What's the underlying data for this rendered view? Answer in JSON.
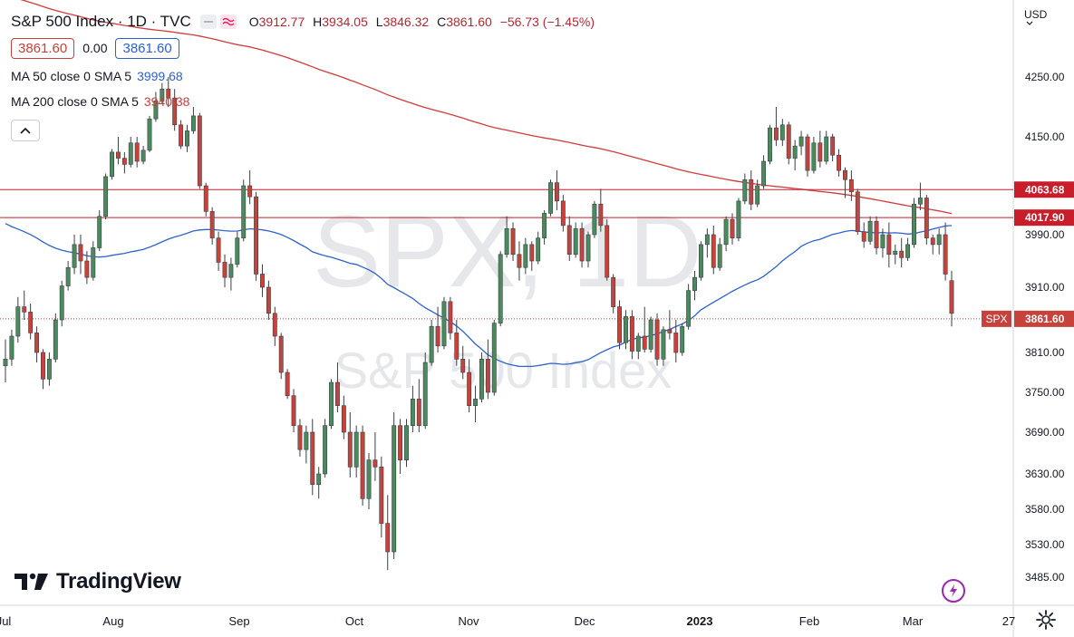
{
  "header": {
    "title": "S&P 500 Index · 1D · TVC",
    "ohlc": {
      "o_label": "O",
      "o": "3912.77",
      "h_label": "H",
      "h": "3934.05",
      "l_label": "L",
      "l": "3846.32",
      "c_label": "C",
      "c": "3861.60",
      "change": "−56.73 (−1.45%)"
    },
    "bid": "3861.60",
    "spread": "0.00",
    "ask": "3861.60",
    "ma50_label": "MA 50 close 0 SMA 5",
    "ma50_value": "3999.68",
    "ma200_label": "MA 200 close 0 SMA 5",
    "ma200_value": "3940.38"
  },
  "currency_label": "USD",
  "logo_text": "TradingView",
  "watermark": {
    "symbol": "SPX, 1D",
    "name": "S&P 500 Index"
  },
  "colors": {
    "up": "#4a8a5c",
    "down": "#c6423b",
    "ma50": "#2f62c8",
    "ma200": "#cf3c3c",
    "hline": "#c81e2c",
    "price_tag": "#c6423b"
  },
  "icons": [
    "chevron-up-icon",
    "lightning-icon",
    "gear-icon",
    "tradingview-logo-icon"
  ],
  "chart_data": {
    "type": "candlestick",
    "y_axis_ticks": [
      4250,
      4150,
      3990,
      3910,
      3810,
      3750,
      3690,
      3630,
      3580,
      3530,
      3485
    ],
    "y_tick_labels": [
      "4250.00",
      "4150.00",
      "3990.00",
      "3910.00",
      "3810.00",
      "3750.00",
      "3690.00",
      "3630.00",
      "3580.00",
      "3530.00",
      "3485.00"
    ],
    "x_tick_labels": [
      "Jul",
      "Aug",
      "Sep",
      "Oct",
      "Nov",
      "Dec",
      "2023",
      "Feb",
      "Mar",
      "27"
    ],
    "horizontal_levels": [
      {
        "label": "4063.68",
        "value": 4063.68
      },
      {
        "label": "4017.90",
        "value": 4017.9
      }
    ],
    "last_price": {
      "symbol": "SPX",
      "label": "3861.60",
      "value": 3861.6
    },
    "candles_ohlc": [
      [
        3790,
        3830,
        3765,
        3800
      ],
      [
        3800,
        3845,
        3790,
        3835
      ],
      [
        3835,
        3895,
        3825,
        3880
      ],
      [
        3880,
        3905,
        3860,
        3872
      ],
      [
        3872,
        3885,
        3830,
        3840
      ],
      [
        3840,
        3850,
        3795,
        3810
      ],
      [
        3810,
        3815,
        3755,
        3770
      ],
      [
        3770,
        3810,
        3760,
        3800
      ],
      [
        3800,
        3870,
        3795,
        3860
      ],
      [
        3860,
        3920,
        3850,
        3912
      ],
      [
        3912,
        3950,
        3905,
        3940
      ],
      [
        3940,
        3990,
        3930,
        3975
      ],
      [
        3975,
        3990,
        3930,
        3950
      ],
      [
        3950,
        3965,
        3915,
        3925
      ],
      [
        3925,
        3980,
        3920,
        3970
      ],
      [
        3970,
        4030,
        3965,
        4020
      ],
      [
        4020,
        4090,
        4015,
        4085
      ],
      [
        4085,
        4130,
        4080,
        4125
      ],
      [
        4125,
        4150,
        4105,
        4115
      ],
      [
        4115,
        4125,
        4090,
        4105
      ],
      [
        4105,
        4150,
        4100,
        4140
      ],
      [
        4140,
        4150,
        4100,
        4110
      ],
      [
        4110,
        4135,
        4105,
        4128
      ],
      [
        4128,
        4185,
        4125,
        4180
      ],
      [
        4180,
        4225,
        4175,
        4210
      ],
      [
        4210,
        4240,
        4205,
        4230
      ],
      [
        4230,
        4250,
        4200,
        4215
      ],
      [
        4215,
        4230,
        4160,
        4170
      ],
      [
        4170,
        4178,
        4130,
        4135
      ],
      [
        4135,
        4170,
        4125,
        4160
      ],
      [
        4160,
        4200,
        4155,
        4185
      ],
      [
        4185,
        4190,
        4065,
        4070
      ],
      [
        4070,
        4075,
        4020,
        4028
      ],
      [
        4028,
        4035,
        3975,
        3985
      ],
      [
        3985,
        3995,
        3935,
        3948
      ],
      [
        3948,
        3960,
        3910,
        3925
      ],
      [
        3925,
        3955,
        3905,
        3945
      ],
      [
        3945,
        3995,
        3940,
        3985
      ],
      [
        3985,
        4080,
        3980,
        4070
      ],
      [
        4070,
        4095,
        4040,
        4052
      ],
      [
        4052,
        4060,
        3920,
        3930
      ],
      [
        3930,
        3945,
        3895,
        3910
      ],
      [
        3910,
        3920,
        3860,
        3870
      ],
      [
        3870,
        3880,
        3820,
        3835
      ],
      [
        3835,
        3840,
        3770,
        3780
      ],
      [
        3780,
        3785,
        3740,
        3745
      ],
      [
        3745,
        3755,
        3690,
        3700
      ],
      [
        3700,
        3710,
        3655,
        3665
      ],
      [
        3665,
        3700,
        3645,
        3690
      ],
      [
        3690,
        3710,
        3600,
        3615
      ],
      [
        3615,
        3640,
        3595,
        3630
      ],
      [
        3630,
        3710,
        3625,
        3700
      ],
      [
        3700,
        3770,
        3695,
        3765
      ],
      [
        3765,
        3795,
        3720,
        3730
      ],
      [
        3730,
        3745,
        3680,
        3690
      ],
      [
        3690,
        3720,
        3625,
        3640
      ],
      [
        3640,
        3700,
        3625,
        3690
      ],
      [
        3690,
        3700,
        3585,
        3595
      ],
      [
        3595,
        3660,
        3580,
        3650
      ],
      [
        3650,
        3690,
        3620,
        3640
      ],
      [
        3640,
        3655,
        3540,
        3560
      ],
      [
        3560,
        3600,
        3495,
        3520
      ],
      [
        3520,
        3720,
        3510,
        3700
      ],
      [
        3700,
        3710,
        3630,
        3650
      ],
      [
        3650,
        3710,
        3640,
        3700
      ],
      [
        3700,
        3760,
        3690,
        3740
      ],
      [
        3740,
        3770,
        3690,
        3700
      ],
      [
        3700,
        3810,
        3695,
        3795
      ],
      [
        3795,
        3860,
        3790,
        3850
      ],
      [
        3850,
        3880,
        3810,
        3820
      ],
      [
        3820,
        3895,
        3815,
        3888
      ],
      [
        3888,
        3895,
        3830,
        3840
      ],
      [
        3840,
        3860,
        3790,
        3800
      ],
      [
        3800,
        3820,
        3770,
        3780
      ],
      [
        3780,
        3800,
        3720,
        3730
      ],
      [
        3730,
        3760,
        3705,
        3740
      ],
      [
        3740,
        3810,
        3735,
        3800
      ],
      [
        3800,
        3830,
        3740,
        3750
      ],
      [
        3750,
        3860,
        3745,
        3855
      ],
      [
        3855,
        3965,
        3850,
        3960
      ],
      [
        3960,
        4020,
        3955,
        4000
      ],
      [
        4000,
        4010,
        3950,
        3960
      ],
      [
        3960,
        3980,
        3920,
        3940
      ],
      [
        3940,
        3985,
        3930,
        3975
      ],
      [
        3975,
        3980,
        3935,
        3950
      ],
      [
        3950,
        3995,
        3945,
        3985
      ],
      [
        3985,
        4030,
        3975,
        4025
      ],
      [
        4025,
        4080,
        4020,
        4075
      ],
      [
        4075,
        4095,
        4030,
        4045
      ],
      [
        4045,
        4055,
        3995,
        4005
      ],
      [
        4005,
        4020,
        3950,
        3960
      ],
      [
        3960,
        4010,
        3955,
        4000
      ],
      [
        4000,
        4010,
        3940,
        3950
      ],
      [
        3950,
        3995,
        3940,
        3990
      ],
      [
        3990,
        4045,
        3985,
        4040
      ],
      [
        4040,
        4065,
        3995,
        4005
      ],
      [
        4005,
        4015,
        3920,
        3925
      ],
      [
        3925,
        3930,
        3870,
        3880
      ],
      [
        3880,
        3890,
        3815,
        3825
      ],
      [
        3825,
        3875,
        3815,
        3865
      ],
      [
        3865,
        3875,
        3800,
        3812
      ],
      [
        3812,
        3840,
        3800,
        3835
      ],
      [
        3835,
        3880,
        3810,
        3815
      ],
      [
        3815,
        3865,
        3810,
        3860
      ],
      [
        3860,
        3870,
        3790,
        3800
      ],
      [
        3800,
        3850,
        3790,
        3845
      ],
      [
        3845,
        3875,
        3830,
        3840
      ],
      [
        3840,
        3860,
        3795,
        3810
      ],
      [
        3810,
        3855,
        3805,
        3850
      ],
      [
        3850,
        3915,
        3845,
        3905
      ],
      [
        3905,
        3935,
        3890,
        3925
      ],
      [
        3925,
        3980,
        3920,
        3975
      ],
      [
        3975,
        4000,
        3955,
        3990
      ],
      [
        3990,
        4005,
        3930,
        3940
      ],
      [
        3940,
        3985,
        3935,
        3975
      ],
      [
        3975,
        4020,
        3965,
        4015
      ],
      [
        4015,
        4025,
        3975,
        3985
      ],
      [
        3985,
        4050,
        3980,
        4045
      ],
      [
        4045,
        4090,
        4040,
        4080
      ],
      [
        4080,
        4095,
        4030,
        4040
      ],
      [
        4040,
        4080,
        4035,
        4070
      ],
      [
        4070,
        4120,
        4065,
        4110
      ],
      [
        4110,
        4170,
        4105,
        4165
      ],
      [
        4165,
        4200,
        4135,
        4145
      ],
      [
        4145,
        4180,
        4135,
        4170
      ],
      [
        4170,
        4175,
        4105,
        4115
      ],
      [
        4115,
        4145,
        4095,
        4135
      ],
      [
        4135,
        4160,
        4120,
        4150
      ],
      [
        4150,
        4155,
        4085,
        4095
      ],
      [
        4095,
        4150,
        4090,
        4140
      ],
      [
        4140,
        4160,
        4100,
        4110
      ],
      [
        4110,
        4160,
        4105,
        4150
      ],
      [
        4150,
        4155,
        4110,
        4120
      ],
      [
        4120,
        4130,
        4085,
        4095
      ],
      [
        4095,
        4100,
        4050,
        4080
      ],
      [
        4080,
        4095,
        4045,
        4060
      ],
      [
        4060,
        4065,
        3990,
        3995
      ],
      [
        3995,
        4010,
        3970,
        3980
      ],
      [
        3980,
        4020,
        3975,
        4012
      ],
      [
        4012,
        4020,
        3960,
        3970
      ],
      [
        3970,
        4000,
        3955,
        3990
      ],
      [
        3990,
        4010,
        3940,
        3960
      ],
      [
        3960,
        3975,
        3945,
        3965
      ],
      [
        3965,
        3985,
        3940,
        3955
      ],
      [
        3955,
        3985,
        3950,
        3975
      ],
      [
        3975,
        4050,
        3970,
        4040
      ],
      [
        4040,
        4075,
        4030,
        4050
      ],
      [
        4050,
        4055,
        3975,
        3985
      ],
      [
        3985,
        3990,
        3960,
        3975
      ],
      [
        3975,
        4000,
        3960,
        3990
      ],
      [
        3990,
        4010,
        3920,
        3930
      ],
      [
        3920,
        3935,
        3850,
        3870
      ]
    ]
  }
}
